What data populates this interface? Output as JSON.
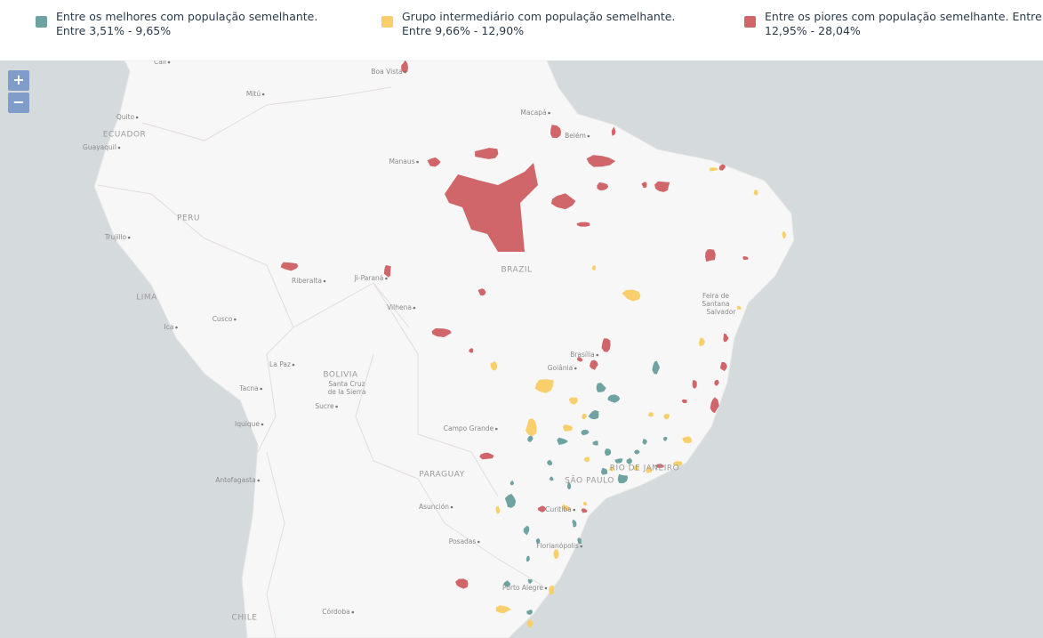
{
  "legend": [
    {
      "label": "Entre os melhores com população semelhante. Entre 3,51% - 9,65%",
      "color": "#6fa3a1"
    },
    {
      "label": "Grupo intermediário com população semelhante. Entre 9,66% - 12,90%",
      "color": "#f8cf6a"
    },
    {
      "label": "Entre os piores com população semelhante. Entre 12,95% - 28,04%",
      "color": "#d0666a"
    }
  ],
  "zoom": {
    "in": "+",
    "out": "−"
  },
  "map_labels": [
    "Cali",
    "Boa Vista",
    "Mitú",
    "Quito",
    "Macapá",
    "ECUADOR",
    "Guayaquil",
    "Belém",
    "Manaus",
    "PERU",
    "Trujillo",
    "BRAZIL",
    "Riberalta",
    "Ji-Paraná",
    "LIMA",
    "Feira de",
    "Santana",
    "Vilhena",
    "Cusco",
    "Salvador",
    "Ica",
    "Brasília",
    "La Paz",
    "BOLIVIA",
    "Goiânia",
    "Santa Cruz",
    "de la Sierra",
    "Tacna",
    "Sucre",
    "Iquique",
    "Campo Grande",
    "PARAGUAY",
    "Antofagasta",
    "SÃO PAULO",
    "RIO DE JANEIRO",
    "Asunción",
    "Curitiba",
    "Posadas",
    "Florianópolis",
    "Porto Alegre",
    "Córdoba",
    "CHILE"
  ]
}
